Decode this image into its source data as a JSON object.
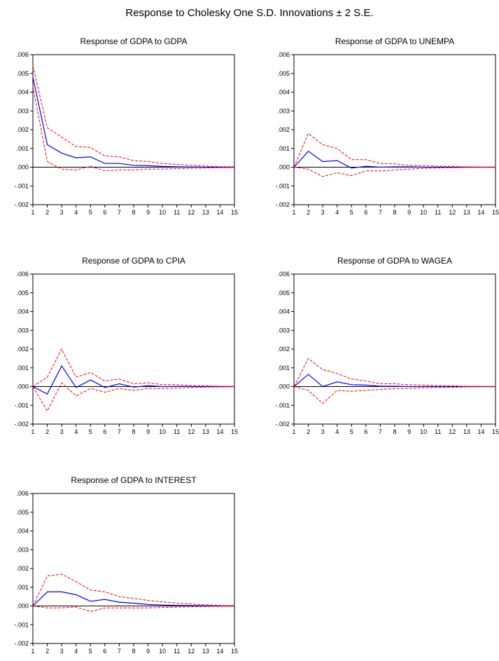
{
  "title": "Response to Cholesky One S.D. Innovations ± 2 S.E.",
  "colors": {
    "response": "#0000ff",
    "bands": "#ff0000",
    "zero": "#000000"
  },
  "chart_data": [
    {
      "type": "line",
      "title": "Response of GDPA to GDPA",
      "x": [
        1,
        2,
        3,
        4,
        5,
        6,
        7,
        8,
        9,
        10,
        11,
        12,
        13,
        14,
        15
      ],
      "ylim": [
        -0.002,
        0.006
      ],
      "yticks": [
        ".006",
        ".005",
        ".004",
        ".003",
        ".002",
        ".001",
        ".000",
        "-.001",
        "-.002"
      ],
      "series": [
        {
          "role": "response",
          "values": [
            0.0048,
            0.0012,
            0.00075,
            0.0005,
            0.00055,
            0.0002,
            0.0002,
            0.0001,
            8e-05,
            4e-05,
            2e-05,
            1e-05,
            0,
            0,
            0
          ]
        },
        {
          "role": "upper",
          "values": [
            0.0054,
            0.0021,
            0.0016,
            0.0011,
            0.00105,
            0.0006,
            0.00055,
            0.00035,
            0.0003,
            0.0002,
            0.00015,
            0.0001,
            6e-05,
            3e-05,
            2e-05
          ]
        },
        {
          "role": "lower",
          "values": [
            0.0043,
            0.0003,
            -0.0001,
            -0.00015,
            5e-05,
            -0.0002,
            -0.00015,
            -0.00015,
            -0.0001,
            -0.0001,
            -8e-05,
            -6e-05,
            -4e-05,
            -3e-05,
            -2e-05
          ]
        }
      ]
    },
    {
      "type": "line",
      "title": "Response of GDPA to UNEMPA",
      "x": [
        1,
        2,
        3,
        4,
        5,
        6,
        7,
        8,
        9,
        10,
        11,
        12,
        13,
        14,
        15
      ],
      "ylim": [
        -0.002,
        0.006
      ],
      "yticks": [
        ".006",
        ".005",
        ".004",
        ".003",
        ".002",
        ".001",
        ".000",
        "-.001",
        "-.002"
      ],
      "series": [
        {
          "role": "response",
          "values": [
            0,
            0.00085,
            0.0003,
            0.00035,
            -5e-05,
            5e-05,
            0,
            2e-05,
            2e-05,
            0,
            0,
            0,
            0,
            0,
            0
          ]
        },
        {
          "role": "upper",
          "values": [
            0,
            0.0018,
            0.0012,
            0.001,
            0.0004,
            0.0004,
            0.0002,
            0.00018,
            0.0001,
            8e-05,
            5e-05,
            4e-05,
            2e-05,
            1e-05,
            1e-05
          ]
        },
        {
          "role": "lower",
          "values": [
            0,
            -0.0001,
            -0.0005,
            -0.0003,
            -0.00045,
            -0.0002,
            -0.0002,
            -0.00015,
            -0.0001,
            -6e-05,
            -4e-05,
            -3e-05,
            -2e-05,
            -1e-05,
            -1e-05
          ]
        }
      ]
    },
    {
      "type": "line",
      "title": "Response of GDPA to CPIA",
      "x": [
        1,
        2,
        3,
        4,
        5,
        6,
        7,
        8,
        9,
        10,
        11,
        12,
        13,
        14,
        15
      ],
      "ylim": [
        -0.002,
        0.006
      ],
      "yticks": [
        ".006",
        ".005",
        ".004",
        ".003",
        ".002",
        ".001",
        ".000",
        "-.001",
        "-.002"
      ],
      "series": [
        {
          "role": "response",
          "values": [
            0,
            -0.0004,
            0.0011,
            -5e-05,
            0.00035,
            -5e-05,
            0.00015,
            -3e-05,
            5e-05,
            0,
            1e-05,
            0,
            0,
            0,
            0
          ]
        },
        {
          "role": "upper",
          "values": [
            0,
            0.0005,
            0.002,
            0.0005,
            0.00075,
            0.0003,
            0.0004,
            0.00015,
            0.0002,
            0.0001,
            0.0001,
            6e-05,
            4e-05,
            2e-05,
            1e-05
          ]
        },
        {
          "role": "lower",
          "values": [
            0,
            -0.0013,
            0.0002,
            -0.0005,
            -0.0001,
            -0.0003,
            -0.0001,
            -0.0002,
            -0.0001,
            -0.0001,
            -8e-05,
            -5e-05,
            -3e-05,
            -2e-05,
            -1e-05
          ]
        }
      ]
    },
    {
      "type": "line",
      "title": "Response of GDPA to WAGEA",
      "x": [
        1,
        2,
        3,
        4,
        5,
        6,
        7,
        8,
        9,
        10,
        11,
        12,
        13,
        14,
        15
      ],
      "ylim": [
        -0.002,
        0.006
      ],
      "yticks": [
        ".006",
        ".005",
        ".004",
        ".003",
        ".002",
        ".001",
        ".000",
        "-.001",
        "-.002"
      ],
      "series": [
        {
          "role": "response",
          "values": [
            0,
            0.00065,
            0,
            0.00025,
            0.0001,
            8e-05,
            2e-05,
            2e-05,
            0,
            0,
            0,
            0,
            0,
            0,
            0
          ]
        },
        {
          "role": "upper",
          "values": [
            0,
            0.0015,
            0.0009,
            0.0007,
            0.0004,
            0.0003,
            0.00015,
            0.00015,
            0.0001,
            8e-05,
            5e-05,
            4e-05,
            2e-05,
            1e-05,
            1e-05
          ]
        },
        {
          "role": "lower",
          "values": [
            0,
            -0.0002,
            -0.0009,
            -0.0002,
            -0.00025,
            -0.0002,
            -0.00015,
            -0.0001,
            -0.0001,
            -6e-05,
            -5e-05,
            -4e-05,
            -2e-05,
            -1e-05,
            -1e-05
          ]
        }
      ]
    },
    {
      "type": "line",
      "title": "Response of GDPA to INTEREST",
      "x": [
        1,
        2,
        3,
        4,
        5,
        6,
        7,
        8,
        9,
        10,
        11,
        12,
        13,
        14,
        15
      ],
      "ylim": [
        -0.002,
        0.006
      ],
      "yticks": [
        ".006",
        ".005",
        ".004",
        ".003",
        ".002",
        ".001",
        ".000",
        "-.001",
        "-.002"
      ],
      "series": [
        {
          "role": "response",
          "values": [
            0,
            0.00075,
            0.00075,
            0.0006,
            0.00025,
            0.00035,
            0.0002,
            0.00015,
            8e-05,
            5e-05,
            3e-05,
            2e-05,
            1e-05,
            0,
            0
          ]
        },
        {
          "role": "upper",
          "values": [
            0,
            0.0016,
            0.0017,
            0.0013,
            0.00085,
            0.00075,
            0.0005,
            0.0004,
            0.0003,
            0.00022,
            0.00015,
            0.0001,
            6e-05,
            3e-05,
            2e-05
          ]
        },
        {
          "role": "lower",
          "values": [
            0,
            -0.0001,
            -0.0001,
            -5e-05,
            -0.0003,
            -0.0001,
            -0.0001,
            -0.0001,
            -0.0001,
            -8e-05,
            -6e-05,
            -4e-05,
            -3e-05,
            -2e-05,
            -1e-05
          ]
        }
      ]
    }
  ]
}
